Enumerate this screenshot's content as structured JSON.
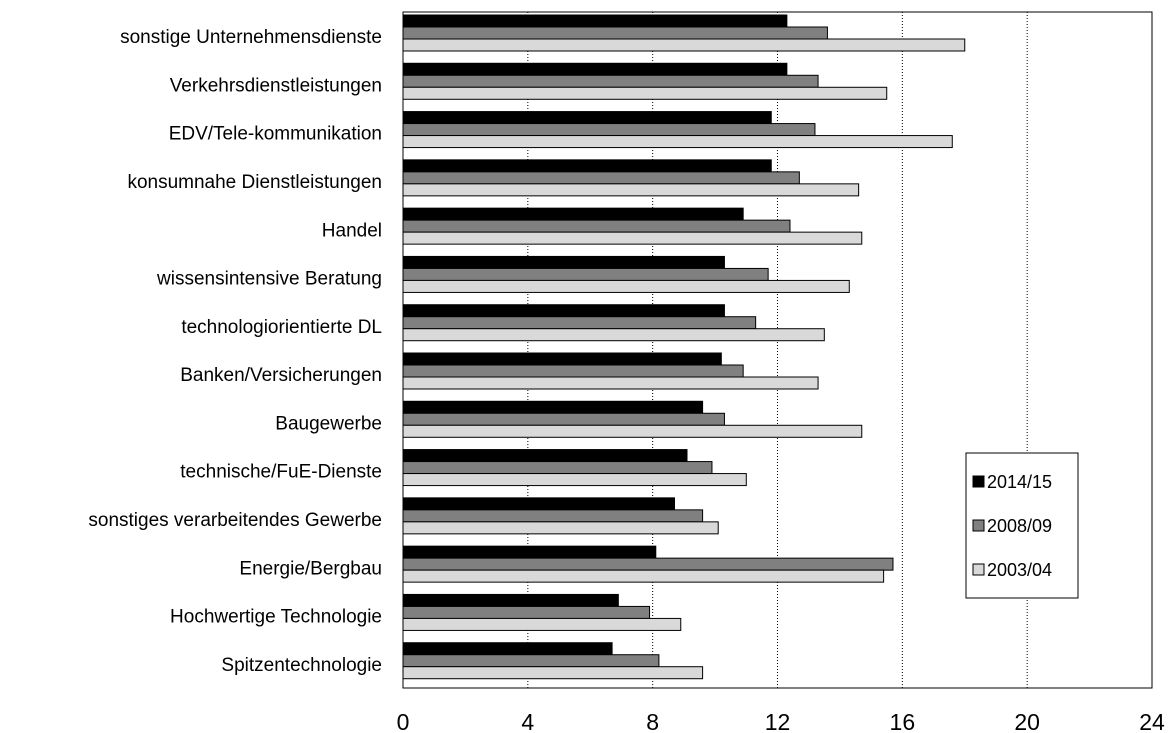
{
  "chart_data": {
    "type": "bar",
    "orientation": "horizontal",
    "categories": [
      "sonstige Unternehmensdienste",
      "Verkehrsdienstleistungen",
      "EDV/Tele-kommunikation",
      "konsumnahe Dienstleistungen",
      "Handel",
      "wissensintensive Beratung",
      "technologiorientierte DL",
      "Banken/Versicherungen",
      "Baugewerbe",
      "technische/FuE-Dienste",
      "sonstiges verarbeitendes Gewerbe",
      "Energie/Bergbau",
      "Hochwertige Technologie",
      "Spitzentechnologie"
    ],
    "series": [
      {
        "name": "2014/15",
        "color": "#000000",
        "values": [
          12.3,
          12.3,
          11.8,
          11.8,
          10.9,
          10.3,
          10.3,
          10.2,
          9.6,
          9.1,
          8.7,
          8.1,
          6.9,
          6.7
        ]
      },
      {
        "name": "2008/09",
        "color": "#808080",
        "values": [
          13.6,
          13.3,
          13.2,
          12.7,
          12.4,
          11.7,
          11.3,
          10.9,
          10.3,
          9.9,
          9.6,
          15.7,
          7.9,
          8.2
        ]
      },
      {
        "name": "2003/04",
        "color": "#d9d9d9",
        "values": [
          18.0,
          15.5,
          17.6,
          14.6,
          14.7,
          14.3,
          13.5,
          13.3,
          14.7,
          11.0,
          10.1,
          15.4,
          8.9,
          9.6
        ]
      }
    ],
    "xlim": [
      0,
      24
    ],
    "xticks": [
      "0",
      "4",
      "8",
      "12",
      "16",
      "20",
      "24"
    ],
    "grid": "vertical dotted",
    "legend": "right"
  }
}
